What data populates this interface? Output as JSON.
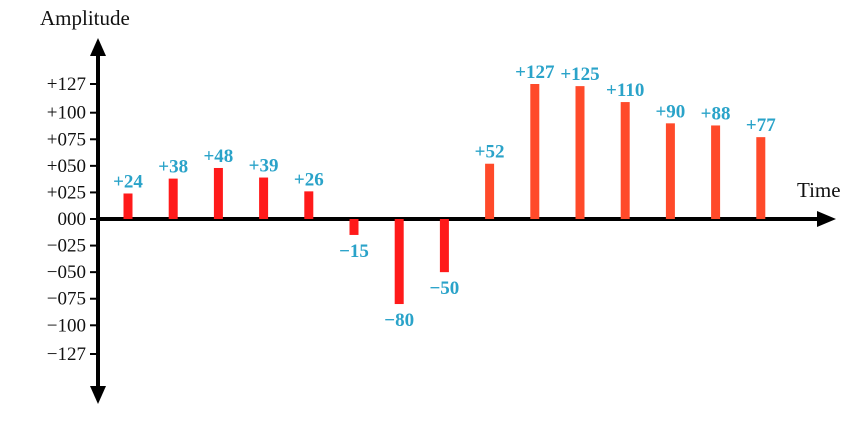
{
  "chart_data": {
    "type": "bar",
    "xlabel": "Time",
    "ylabel": "Amplitude",
    "ylim": [
      -127,
      127
    ],
    "yticks": [
      127,
      100,
      75,
      50,
      25,
      0,
      -25,
      -50,
      -75,
      -100,
      -127
    ],
    "ytick_labels": [
      "+127",
      "+100",
      "+075",
      "+050",
      "+025",
      "000",
      "−025",
      "−050",
      "−075",
      "−100",
      "−127"
    ],
    "values": [
      24,
      38,
      48,
      39,
      26,
      -15,
      -80,
      -50,
      52,
      127,
      125,
      110,
      90,
      88,
      77
    ],
    "value_labels": [
      "+24",
      "+38",
      "+48",
      "+39",
      "+26",
      "−15",
      "−80",
      "−50",
      "+52",
      "+127",
      "+125",
      "+110",
      "+90",
      "+88",
      "+77"
    ],
    "grid": false,
    "legend": "none",
    "colors": {
      "first_segment_bars": "#ff1a1a",
      "second_segment_bars": "#ff4a2a",
      "labels": "#2aa3c9",
      "axes": "#000000"
    }
  }
}
